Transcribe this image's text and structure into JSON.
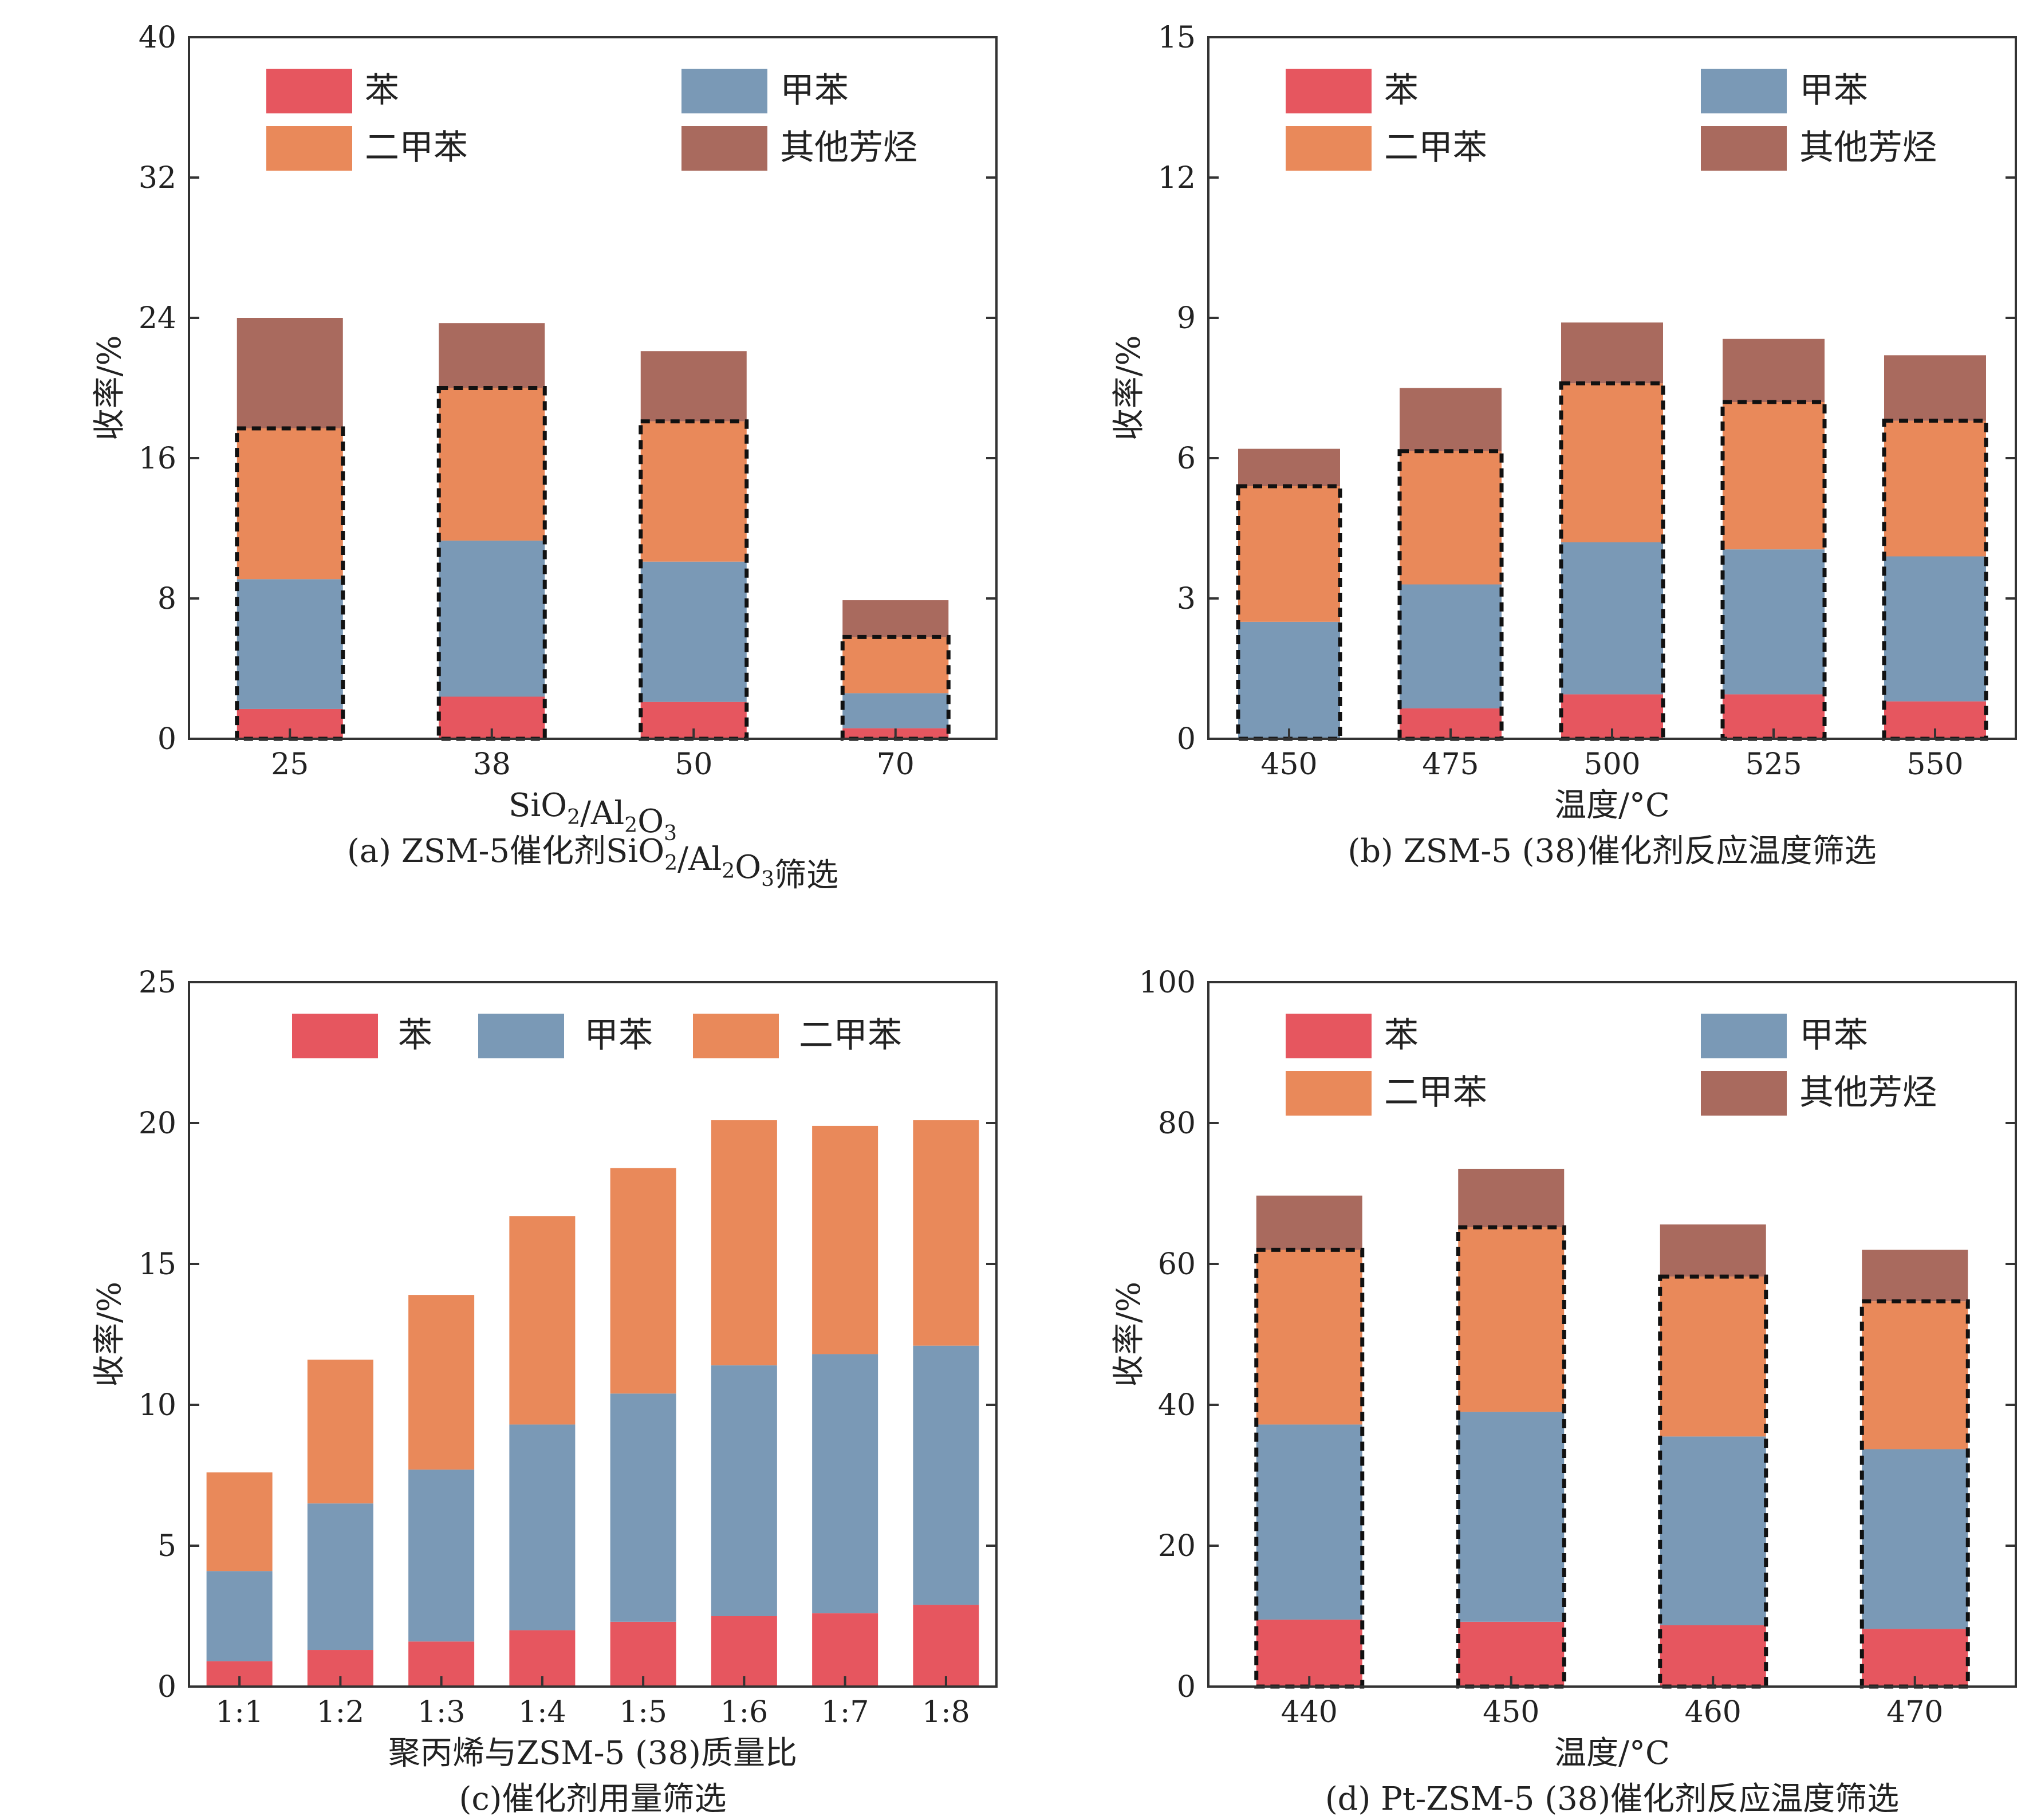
{
  "colors": {
    "benzene": "#e6565f",
    "toluene": "#7a99b6",
    "xylene": "#e9895a",
    "other": "#a96a5e",
    "axis": "#333333",
    "dash": "#111111"
  },
  "chart_data": [
    {
      "id": "a",
      "type": "stacked-bar",
      "caption": "(a) ZSM-5催化剂SiO₂/Al₂O₃筛选",
      "xlabel": "SiO₂/Al₂O₃",
      "ylabel": "收率/%",
      "ylim": [
        0,
        40
      ],
      "yticks": [
        "0",
        "8",
        "16",
        "24",
        "32",
        "40"
      ],
      "categories": [
        "25",
        "38",
        "50",
        "70"
      ],
      "legend": [
        "苯",
        "甲苯",
        "二甲苯",
        "其他芳烃"
      ],
      "series": [
        {
          "name": "苯",
          "key": "benzene",
          "values": [
            1.7,
            2.4,
            2.1,
            0.6
          ]
        },
        {
          "name": "甲苯",
          "key": "toluene",
          "values": [
            7.4,
            8.9,
            8.0,
            2.0
          ]
        },
        {
          "name": "二甲苯",
          "key": "xylene",
          "values": [
            8.6,
            8.7,
            8.0,
            3.2
          ]
        },
        {
          "name": "其他芳烃",
          "key": "other",
          "values": [
            6.3,
            3.7,
            4.0,
            2.1
          ]
        }
      ],
      "dashed_outline_series": 3
    },
    {
      "id": "b",
      "type": "stacked-bar",
      "caption": "(b) ZSM-5 (38)催化剂反应温度筛选",
      "xlabel": "温度/°C",
      "ylabel": "收率/%",
      "ylim": [
        0,
        15
      ],
      "yticks": [
        "0",
        "3",
        "6",
        "9",
        "12",
        "15"
      ],
      "categories": [
        "450",
        "475",
        "500",
        "525",
        "550"
      ],
      "legend": [
        "苯",
        "甲苯",
        "二甲苯",
        "其他芳烃"
      ],
      "series": [
        {
          "name": "苯",
          "key": "benzene",
          "values": [
            0.0,
            0.65,
            0.95,
            0.95,
            0.8
          ]
        },
        {
          "name": "甲苯",
          "key": "toluene",
          "values": [
            2.5,
            2.65,
            3.25,
            3.1,
            3.1
          ]
        },
        {
          "name": "二甲苯",
          "key": "xylene",
          "values": [
            2.9,
            2.85,
            3.4,
            3.15,
            2.9
          ]
        },
        {
          "name": "其他芳烃",
          "key": "other",
          "values": [
            0.8,
            1.35,
            1.3,
            1.35,
            1.4
          ]
        }
      ],
      "dashed_outline_series": 3
    },
    {
      "id": "c",
      "type": "stacked-bar",
      "caption": "(c)催化剂用量筛选",
      "xlabel": "聚丙烯与ZSM-5 (38)质量比",
      "ylabel": "收率/%",
      "ylim": [
        0,
        25
      ],
      "yticks": [
        "0",
        "5",
        "10",
        "15",
        "20",
        "25"
      ],
      "categories": [
        "1:1",
        "1:2",
        "1:3",
        "1:4",
        "1:5",
        "1:6",
        "1:7",
        "1:8"
      ],
      "legend": [
        "苯",
        "甲苯",
        "二甲苯"
      ],
      "series": [
        {
          "name": "苯",
          "key": "benzene",
          "values": [
            0.9,
            1.3,
            1.6,
            2.0,
            2.3,
            2.5,
            2.6,
            2.9
          ]
        },
        {
          "name": "甲苯",
          "key": "toluene",
          "values": [
            3.2,
            5.2,
            6.1,
            7.3,
            8.1,
            8.9,
            9.2,
            9.2
          ]
        },
        {
          "name": "二甲苯",
          "key": "xylene",
          "values": [
            3.5,
            5.1,
            6.2,
            7.4,
            8.0,
            8.7,
            8.1,
            8.0
          ]
        }
      ],
      "dashed_outline_series": 0
    },
    {
      "id": "d",
      "type": "stacked-bar",
      "caption": "(d) Pt-ZSM-5 (38)催化剂反应温度筛选",
      "xlabel": "温度/°C",
      "ylabel": "收率/%",
      "ylim": [
        0,
        100
      ],
      "yticks": [
        "0",
        "20",
        "40",
        "60",
        "80",
        "100"
      ],
      "categories": [
        "440",
        "450",
        "460",
        "470"
      ],
      "legend": [
        "苯",
        "甲苯",
        "二甲苯",
        "其他芳烃"
      ],
      "series": [
        {
          "name": "苯",
          "key": "benzene",
          "values": [
            9.5,
            9.2,
            8.7,
            8.2
          ]
        },
        {
          "name": "甲苯",
          "key": "toluene",
          "values": [
            27.7,
            29.8,
            26.8,
            25.5
          ]
        },
        {
          "name": "二甲苯",
          "key": "xylene",
          "values": [
            24.8,
            26.2,
            22.7,
            21.0
          ]
        },
        {
          "name": "其他芳烃",
          "key": "other",
          "values": [
            7.7,
            8.3,
            7.4,
            7.3
          ]
        }
      ],
      "dashed_outline_series": 3
    }
  ]
}
